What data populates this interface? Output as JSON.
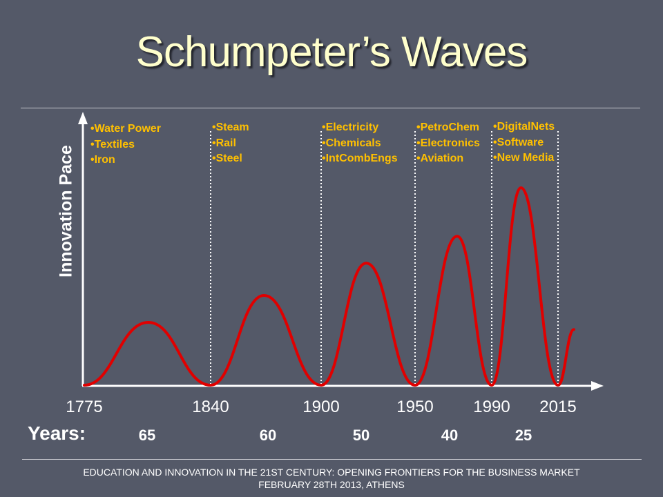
{
  "title": "Schumpeter’s Waves",
  "footer": {
    "line1": "EDUCATION AND INNOVATION IN THE 21ST CENTURY: OPENING FRONTIERS FOR THE BUSINESS MARKET",
    "line2": "FEBRUARY 28TH 2013, ATHENS"
  },
  "colors": {
    "background": "#545968",
    "title": "#FFFFCC",
    "curve": "#E00000",
    "technology_text": "#FFC000",
    "axis": "#FFFFFF"
  },
  "chart_data": {
    "type": "line",
    "title": "Schumpeter’s Waves",
    "ylabel": "Innovation Pace",
    "xlabel": "",
    "x_ticks": [
      1775,
      1840,
      1900,
      1950,
      1990,
      2015
    ],
    "x_tick_labels": [
      "1775",
      "1840",
      "1900",
      "1950",
      "1990",
      "2015"
    ],
    "xlim": [
      1775,
      2025
    ],
    "ylim": [
      0,
      100
    ],
    "y_ticks": [],
    "grid": false,
    "series": [
      {
        "type": "waves",
        "points": [
          [
            1775,
            0
          ],
          [
            1808,
            35
          ],
          [
            1840,
            0
          ],
          [
            1869,
            50
          ],
          [
            1900,
            0
          ],
          [
            1924,
            68
          ],
          [
            1950,
            0
          ],
          [
            1972,
            83
          ],
          [
            1990,
            0
          ],
          [
            2001,
            110
          ],
          [
            2015,
            0
          ],
          [
            2021,
            31
          ]
        ]
      }
    ],
    "waves": [
      {
        "start": 1775,
        "end": 1840,
        "duration_label": "65",
        "technologies": [
          "•Water Power",
          "•Textiles",
          "•Iron"
        ]
      },
      {
        "start": 1840,
        "end": 1900,
        "duration_label": "60",
        "technologies": [
          "•Steam",
          "•Rail",
          "•Steel"
        ]
      },
      {
        "start": 1900,
        "end": 1950,
        "duration_label": "50",
        "technologies": [
          "•Electricity",
          "•Chemicals",
          "•IntCombEngs"
        ]
      },
      {
        "start": 1950,
        "end": 1990,
        "duration_label": "40",
        "technologies": [
          "•PetroChem",
          "•Electronics",
          "•Aviation"
        ]
      },
      {
        "start": 1990,
        "end": 2015,
        "duration_label": "25",
        "technologies": [
          "•DigitalNets",
          "•Software",
          "•New Media"
        ]
      }
    ],
    "dividers": [
      1840,
      1900,
      1950,
      1990,
      2015
    ],
    "years_label": "Years:"
  }
}
